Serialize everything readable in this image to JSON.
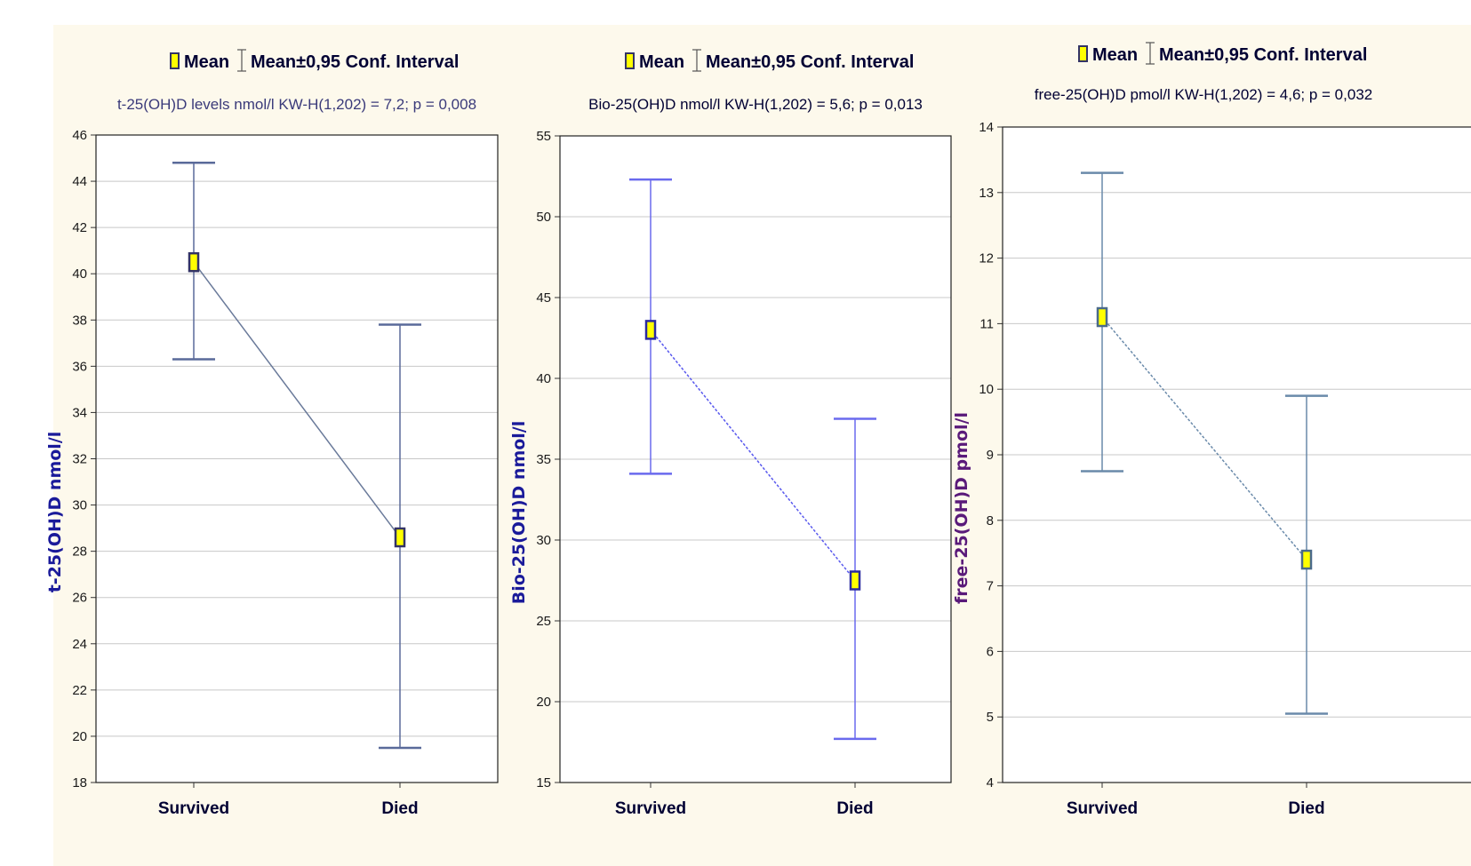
{
  "legend": {
    "mean_label": "Mean",
    "ci_label": "Mean±0,95 Conf. Interval"
  },
  "chart_data": [
    {
      "type": "line",
      "title": "Mean  Mean±0,95 Conf. Interval",
      "subtitle": "t-25(OH)D levels nmol/l  KW-H(1,202) = 7,2; p = 0,008",
      "subtitle_color": "#3a3a7a",
      "ylabel": "t-25(OH)D nmol/l",
      "ylabel_color": "#1a1a9a",
      "categories": [
        "Survived",
        "Died"
      ],
      "mean": [
        40.5,
        28.6
      ],
      "ci_low": [
        36.3,
        19.5
      ],
      "ci_high": [
        44.8,
        37.8
      ],
      "ylim": [
        18,
        46
      ],
      "yticks": [
        18,
        20,
        22,
        24,
        26,
        28,
        30,
        32,
        34,
        36,
        38,
        40,
        42,
        44,
        46
      ],
      "whisker_color": "#5a6a9a",
      "line_color": "#6a7a9a",
      "marker_fill": "#ffff00",
      "marker_edge": "#333366",
      "grid": true
    },
    {
      "type": "line",
      "title": "Mean  Mean±0,95 Conf. Interval",
      "subtitle": "Bio-25(OH)D nmol/l  KW-H(1,202) = 5,6; p = 0,013",
      "subtitle_color": "#000033",
      "ylabel": "Bio-25(OH)D nmol/l",
      "ylabel_color": "#1a1a9a",
      "categories": [
        "Survived",
        "Died"
      ],
      "mean": [
        43.0,
        27.5
      ],
      "ci_low": [
        34.1,
        17.7
      ],
      "ci_high": [
        52.3,
        37.5
      ],
      "ylim": [
        15,
        55
      ],
      "yticks": [
        15,
        20,
        25,
        30,
        35,
        40,
        45,
        50,
        55
      ],
      "whisker_color": "#6a6aee",
      "line_color": "#5a5aee",
      "marker_fill": "#ffff00",
      "marker_edge": "#2a2aa0",
      "grid": true
    },
    {
      "type": "line",
      "title": "Mean  Mean±0,95 Conf. Interval",
      "subtitle": "free-25(OH)D pmol/l  KW-H(1,202) = 4,6; p = 0,032",
      "subtitle_color": "#000033",
      "ylabel": "free-25(OH)D pmol/l",
      "ylabel_color": "#5a1a7a",
      "categories": [
        "Survived",
        "Died"
      ],
      "mean": [
        11.1,
        7.4
      ],
      "ci_low": [
        8.75,
        5.05
      ],
      "ci_high": [
        13.3,
        9.9
      ],
      "ylim": [
        4,
        14
      ],
      "yticks": [
        4,
        5,
        6,
        7,
        8,
        9,
        10,
        11,
        12,
        13,
        14
      ],
      "whisker_color": "#6a8aaa",
      "line_color": "#6a8aaa",
      "marker_fill": "#ffff00",
      "marker_edge": "#4a6a8a",
      "grid": true
    }
  ]
}
